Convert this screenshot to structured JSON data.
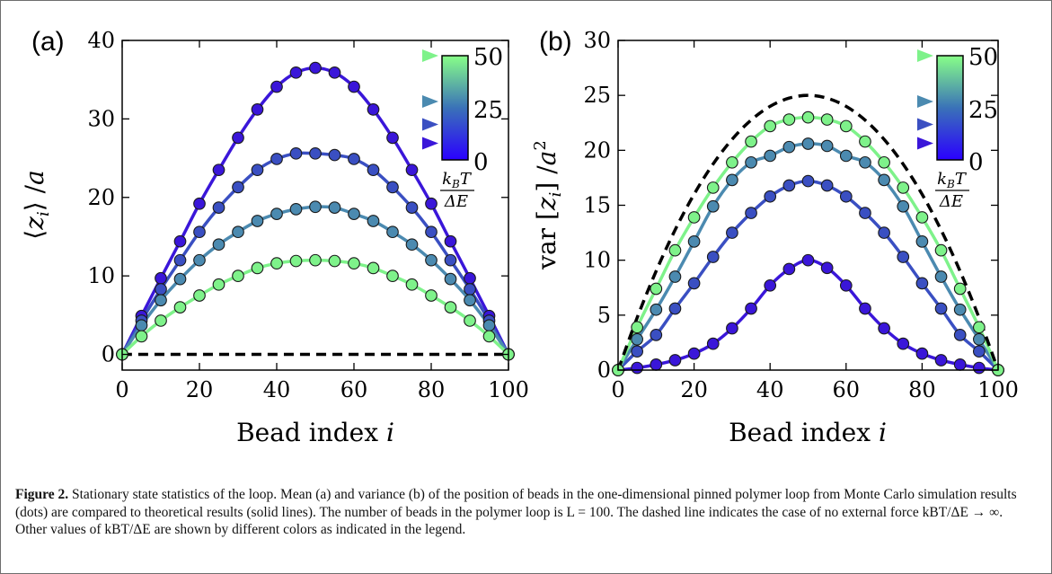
{
  "figure": {
    "caption_label": "Figure 2.",
    "caption_text": "Stationary state statistics of the loop. Mean (a) and variance (b) of the position of beads in the one-dimensional pinned polymer loop from Monte Carlo simulation results (dots) are compared to theoretical results (solid lines). The number of beads in the polymer loop is L = 100. The dashed line indicates the case of no external force kBT/ΔE → ∞. Other values of kBT/ΔE are shown by different colors as indicated in the legend."
  },
  "colors": {
    "kT_2": "#3a16d9",
    "kT_8": "#3a4fc2",
    "kT_17": "#4b8ab0",
    "kT_50": "#7ef28a",
    "dashed": "#000000",
    "cbar_low": "#2a00ff",
    "cbar_mid": "#3a72b8",
    "cbar_high": "#88ff88"
  },
  "chart_data": [
    {
      "type": "line",
      "panel": "(a)",
      "xlabel": "Bead index i",
      "ylabel": "⟨zi⟩ /a",
      "xlim": [
        0,
        100
      ],
      "ylim": [
        -2,
        40
      ],
      "xticks": [
        0,
        20,
        40,
        60,
        80,
        100
      ],
      "yticks": [
        0,
        10,
        20,
        30,
        40
      ],
      "grid": false,
      "colorbar": {
        "label": "kBT/ΔE",
        "ticks": [
          0,
          25,
          50
        ],
        "markers": [
          50,
          28,
          17,
          8
        ]
      },
      "series": [
        {
          "color_key": "kT_2",
          "kind": "solid+dots",
          "x": [
            0,
            5,
            10,
            15,
            20,
            25,
            30,
            35,
            40,
            45,
            50,
            55,
            60,
            65,
            70,
            75,
            80,
            85,
            90,
            95,
            100
          ],
          "y": [
            0,
            4.9,
            9.7,
            14.4,
            19.2,
            23.5,
            27.6,
            31.2,
            34.1,
            35.9,
            36.5,
            35.9,
            34.1,
            31.2,
            27.6,
            23.5,
            19.2,
            14.4,
            9.7,
            4.9,
            0
          ]
        },
        {
          "color_key": "kT_8",
          "kind": "solid+dots",
          "x": [
            0,
            5,
            10,
            15,
            20,
            25,
            30,
            35,
            40,
            45,
            50,
            55,
            60,
            65,
            70,
            75,
            80,
            85,
            90,
            95,
            100
          ],
          "y": [
            0,
            4.3,
            8.3,
            12.0,
            15.6,
            18.7,
            21.3,
            23.5,
            24.9,
            25.6,
            25.6,
            25.4,
            24.9,
            23.5,
            21.3,
            18.7,
            15.6,
            12.0,
            8.3,
            4.3,
            0
          ]
        },
        {
          "color_key": "kT_17",
          "kind": "solid+dots",
          "x": [
            0,
            5,
            10,
            15,
            20,
            25,
            30,
            35,
            40,
            45,
            50,
            55,
            60,
            65,
            70,
            75,
            80,
            85,
            90,
            95,
            100
          ],
          "y": [
            0,
            3.7,
            6.9,
            9.6,
            12.0,
            14.0,
            15.6,
            17.0,
            17.9,
            18.5,
            18.8,
            18.7,
            17.9,
            17.0,
            15.6,
            14.0,
            12.0,
            9.6,
            6.9,
            3.7,
            0
          ]
        },
        {
          "color_key": "kT_50",
          "kind": "solid+dots",
          "x": [
            0,
            5,
            10,
            15,
            20,
            25,
            30,
            35,
            40,
            45,
            50,
            55,
            60,
            65,
            70,
            75,
            80,
            85,
            90,
            95,
            100
          ],
          "y": [
            0,
            2.3,
            4.3,
            6.0,
            7.5,
            8.9,
            10.0,
            11.0,
            11.6,
            11.9,
            12.0,
            11.9,
            11.6,
            11.0,
            10.0,
            8.9,
            7.5,
            6.0,
            4.3,
            2.3,
            0
          ]
        },
        {
          "color_key": "dashed",
          "kind": "dashed",
          "x": [
            0,
            100
          ],
          "y": [
            0,
            0
          ]
        }
      ]
    },
    {
      "type": "line",
      "panel": "(b)",
      "xlabel": "Bead index i",
      "ylabel": "var [zi] /a²",
      "xlim": [
        0,
        100
      ],
      "ylim": [
        0,
        30
      ],
      "xticks": [
        0,
        20,
        40,
        60,
        80,
        100
      ],
      "yticks": [
        0,
        5,
        10,
        15,
        20,
        25,
        30
      ],
      "grid": false,
      "colorbar": {
        "label": "kBT/ΔE",
        "ticks": [
          0,
          25,
          50
        ],
        "markers": [
          50,
          28,
          17,
          8
        ]
      },
      "series": [
        {
          "color_key": "kT_2",
          "kind": "solid+dots",
          "x": [
            0,
            5,
            10,
            15,
            20,
            25,
            30,
            35,
            40,
            45,
            50,
            55,
            60,
            65,
            70,
            75,
            80,
            85,
            90,
            95,
            100
          ],
          "y": [
            0,
            0.2,
            0.5,
            0.9,
            1.5,
            2.4,
            3.8,
            5.6,
            7.7,
            9.2,
            10.0,
            9.3,
            7.7,
            5.6,
            3.8,
            2.4,
            1.5,
            0.9,
            0.5,
            0.2,
            0
          ]
        },
        {
          "color_key": "kT_8",
          "kind": "solid+dots",
          "x": [
            0,
            5,
            10,
            15,
            20,
            25,
            30,
            35,
            40,
            45,
            50,
            55,
            60,
            65,
            70,
            75,
            80,
            85,
            90,
            95,
            100
          ],
          "y": [
            0,
            1.7,
            3.2,
            5.6,
            7.9,
            10.3,
            12.5,
            14.3,
            15.8,
            16.8,
            17.2,
            16.8,
            15.8,
            14.3,
            12.5,
            10.3,
            7.9,
            5.6,
            3.2,
            1.7,
            0
          ]
        },
        {
          "color_key": "kT_17",
          "kind": "solid+dots",
          "x": [
            0,
            5,
            10,
            15,
            20,
            25,
            30,
            35,
            40,
            45,
            50,
            55,
            60,
            65,
            70,
            75,
            80,
            85,
            90,
            95,
            100
          ],
          "y": [
            0,
            2.8,
            5.5,
            8.5,
            11.7,
            14.9,
            17.3,
            18.9,
            19.5,
            20.3,
            20.6,
            20.4,
            19.5,
            18.9,
            17.3,
            14.9,
            11.7,
            8.5,
            5.5,
            2.8,
            0
          ]
        },
        {
          "color_key": "kT_50",
          "kind": "solid+dots",
          "x": [
            0,
            5,
            10,
            15,
            20,
            25,
            30,
            35,
            40,
            45,
            50,
            55,
            60,
            65,
            70,
            75,
            80,
            85,
            90,
            95,
            100
          ],
          "y": [
            0,
            3.9,
            7.4,
            10.9,
            13.9,
            16.6,
            18.9,
            20.8,
            22.2,
            22.8,
            23.0,
            22.8,
            22.2,
            20.8,
            18.9,
            16.6,
            13.9,
            10.9,
            7.4,
            3.9,
            0
          ]
        },
        {
          "color_key": "dashed",
          "kind": "dashed-curve",
          "x": [
            0,
            5,
            10,
            15,
            20,
            25,
            30,
            35,
            40,
            45,
            50,
            55,
            60,
            65,
            70,
            75,
            80,
            85,
            90,
            95,
            100
          ],
          "y": [
            0,
            4.75,
            9.0,
            12.75,
            16.0,
            18.75,
            21.0,
            22.75,
            24.0,
            24.75,
            25.0,
            24.75,
            24.0,
            22.75,
            21.0,
            18.75,
            16.0,
            12.75,
            9.0,
            4.75,
            0
          ]
        }
      ]
    }
  ]
}
